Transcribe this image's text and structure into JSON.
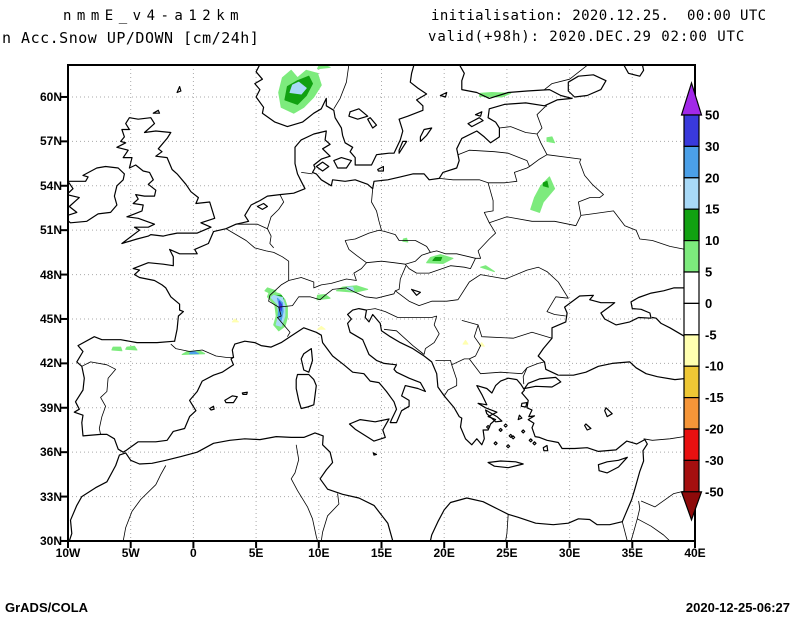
{
  "header": {
    "title_line1": "nmmE_v4-a12km",
    "title_line2": "n Acc.Snow UP/DOWN [cm/24h]",
    "init_line": "initialisation: 2020.12.25.  00:00 UTC",
    "valid_line": "valid(+98h): 2020.DEC.29 02:00 UTC"
  },
  "footer": {
    "left": "GrADS/COLA",
    "right": "2020-12-25-06:27"
  },
  "axes": {
    "lat_ticks": [
      "60N",
      "57N",
      "54N",
      "51N",
      "48N",
      "45N",
      "42N",
      "39N",
      "36N",
      "33N",
      "30N"
    ],
    "lon_ticks": [
      "10W",
      "5W",
      "0",
      "5E",
      "10E",
      "15E",
      "20E",
      "25E",
      "30E",
      "35E",
      "40E"
    ]
  },
  "colorbar": {
    "tick_labels": [
      "50",
      "30",
      "20",
      "15",
      "10",
      "5",
      "0",
      "-5",
      "-10",
      "-15",
      "-20",
      "-30",
      "-50"
    ],
    "segment_colors_top_to_bottom": [
      "#3939DC",
      "#4BA0E8",
      "#A8D9F7",
      "#11A111",
      "#7DEB7D",
      "#FFFFFF",
      "#FFFFFF",
      "#FFFFB0",
      "#EEC735",
      "#F59538",
      "#E81010",
      "#A50F0F"
    ],
    "top_arrow_color": "#A128E8",
    "bottom_arrow_color": "#8E0A0A",
    "palette": {
      "5": "#7DEB7D",
      "10": "#11A111",
      "15": "#A8D9F7",
      "20": "#4BA0E8",
      "30": "#3939DC",
      "50": "#A128E8",
      "-5": "#FFFFB0",
      "-10": "#EEC735",
      "-15": "#F59538",
      "-20": "#E81010",
      "-30": "#A50F0F"
    }
  },
  "chart_data": {
    "type": "filled-contour-map",
    "variable": "Acc.Snow UP/DOWN",
    "units": "cm/24h",
    "model": "nmmE_v4-a12km",
    "initialisation": "2020.12.25. 00:00 UTC",
    "valid": "2020.DEC.29 02:00 UTC (+98h)",
    "lon_range": [
      -10,
      40
    ],
    "lat_range": [
      30,
      62.2
    ],
    "contour_levels": [
      -50,
      -30,
      -20,
      -15,
      -10,
      -5,
      0,
      5,
      10,
      15,
      20,
      30,
      50
    ],
    "patches": [
      {
        "level": 5,
        "region": "southern-norway",
        "points": [
          [
            7.0,
            59.3
          ],
          [
            8.0,
            58.9
          ],
          [
            8.8,
            59.3
          ],
          [
            9.6,
            60.0
          ],
          [
            10.2,
            60.8
          ],
          [
            9.9,
            61.6
          ],
          [
            9.0,
            61.8
          ],
          [
            8.3,
            61.3
          ],
          [
            7.8,
            61.8
          ],
          [
            7.1,
            61.3
          ],
          [
            6.8,
            60.3
          ]
        ]
      },
      {
        "level": 10,
        "region": "southern-norway",
        "points": [
          [
            7.3,
            59.8
          ],
          [
            8.3,
            59.5
          ],
          [
            9.0,
            60.1
          ],
          [
            9.5,
            60.9
          ],
          [
            9.2,
            61.4
          ],
          [
            8.3,
            61.1
          ],
          [
            7.5,
            60.7
          ]
        ]
      },
      {
        "level": 15,
        "region": "southern-norway",
        "points": [
          [
            7.7,
            60.3
          ],
          [
            8.6,
            60.2
          ],
          [
            9.0,
            60.6
          ],
          [
            8.4,
            61.0
          ],
          [
            7.9,
            60.8
          ]
        ]
      },
      {
        "level": 5,
        "region": "norway-north-edge",
        "points": [
          [
            9.9,
            61.9
          ],
          [
            10.9,
            62.0
          ],
          [
            10.4,
            62.15
          ],
          [
            10.0,
            62.1
          ]
        ]
      },
      {
        "level": 5,
        "region": "southern-finland-coast",
        "points": [
          [
            22.8,
            60.05
          ],
          [
            24.6,
            60.0
          ],
          [
            25.3,
            60.25
          ],
          [
            23.8,
            60.3
          ],
          [
            22.9,
            60.25
          ]
        ]
      },
      {
        "level": 5,
        "region": "pskov-area",
        "points": [
          [
            28.2,
            57.0
          ],
          [
            28.8,
            56.9
          ],
          [
            28.6,
            57.3
          ],
          [
            28.2,
            57.25
          ]
        ]
      },
      {
        "level": 5,
        "region": "belarus-upland",
        "points": [
          [
            26.9,
            52.4
          ],
          [
            27.6,
            52.2
          ],
          [
            27.9,
            52.9
          ],
          [
            28.8,
            53.8
          ],
          [
            28.4,
            54.6
          ],
          [
            27.7,
            54.0
          ],
          [
            27.2,
            53.2
          ]
        ]
      },
      {
        "level": 10,
        "region": "belarus-upland",
        "points": [
          [
            27.9,
            54.0
          ],
          [
            28.3,
            53.9
          ],
          [
            28.2,
            54.3
          ],
          [
            27.9,
            54.2
          ]
        ]
      },
      {
        "level": 5,
        "region": "sudetes",
        "points": [
          [
            16.7,
            50.25
          ],
          [
            17.1,
            50.2
          ],
          [
            17.0,
            50.45
          ],
          [
            16.75,
            50.4
          ]
        ]
      },
      {
        "level": 5,
        "region": "tatras",
        "points": [
          [
            18.6,
            48.8
          ],
          [
            19.9,
            48.75
          ],
          [
            20.7,
            49.1
          ],
          [
            19.7,
            49.35
          ],
          [
            18.9,
            49.15
          ]
        ]
      },
      {
        "level": 10,
        "region": "tatras",
        "points": [
          [
            19.1,
            48.95
          ],
          [
            19.7,
            48.95
          ],
          [
            19.8,
            49.15
          ],
          [
            19.3,
            49.15
          ]
        ]
      },
      {
        "level": 5,
        "region": "ukrainian-carpathians",
        "points": [
          [
            22.9,
            48.5
          ],
          [
            24.0,
            48.2
          ],
          [
            23.3,
            48.6
          ]
        ]
      },
      {
        "level": 5,
        "region": "western-alps",
        "points": [
          [
            6.1,
            46.9
          ],
          [
            6.9,
            46.7
          ],
          [
            7.3,
            46.3
          ],
          [
            7.5,
            45.8
          ],
          [
            7.5,
            45.1
          ],
          [
            7.3,
            44.5
          ],
          [
            6.8,
            44.2
          ],
          [
            6.4,
            44.6
          ],
          [
            6.6,
            45.2
          ],
          [
            6.5,
            45.9
          ],
          [
            5.9,
            46.5
          ]
        ]
      },
      {
        "level": 10,
        "region": "western-alps-north",
        "points": [
          [
            6.5,
            46.55
          ],
          [
            7.0,
            46.6
          ],
          [
            7.2,
            46.35
          ],
          [
            6.85,
            46.3
          ]
        ]
      },
      {
        "level": 15,
        "region": "western-alps",
        "points": [
          [
            6.4,
            46.6
          ],
          [
            7.1,
            46.45
          ],
          [
            7.3,
            45.9
          ],
          [
            7.3,
            45.2
          ],
          [
            7.0,
            44.5
          ],
          [
            6.6,
            44.6
          ],
          [
            6.8,
            45.3
          ],
          [
            6.7,
            46.0
          ],
          [
            6.2,
            46.45
          ]
        ]
      },
      {
        "level": 20,
        "region": "western-alps",
        "points": [
          [
            6.7,
            46.4
          ],
          [
            7.1,
            46.1
          ],
          [
            7.15,
            45.5
          ],
          [
            7.0,
            44.9
          ],
          [
            6.75,
            45.2
          ],
          [
            6.85,
            45.9
          ]
        ]
      },
      {
        "level": 30,
        "region": "western-alps",
        "points": [
          [
            6.85,
            46.2
          ],
          [
            7.05,
            45.95
          ],
          [
            7.0,
            45.55
          ],
          [
            6.85,
            45.8
          ]
        ]
      },
      {
        "level": 5,
        "region": "jura",
        "points": [
          [
            5.9,
            47.1
          ],
          [
            6.6,
            46.9
          ],
          [
            6.2,
            46.7
          ],
          [
            5.7,
            46.9
          ]
        ]
      },
      {
        "level": 5,
        "region": "central-alps",
        "points": [
          [
            9.85,
            46.3
          ],
          [
            10.9,
            46.4
          ],
          [
            10.5,
            46.65
          ],
          [
            9.9,
            46.6
          ]
        ]
      },
      {
        "level": 5,
        "region": "eastern-alps",
        "points": [
          [
            11.4,
            46.9
          ],
          [
            12.9,
            46.8
          ],
          [
            13.9,
            47.0
          ],
          [
            13.0,
            47.25
          ],
          [
            11.9,
            47.15
          ]
        ]
      },
      {
        "level": 15,
        "region": "eastern-alps",
        "points": [
          [
            12.2,
            47.0
          ],
          [
            12.8,
            46.9
          ],
          [
            12.7,
            47.15
          ],
          [
            12.3,
            47.15
          ]
        ]
      },
      {
        "level": -5,
        "region": "apennines",
        "points": [
          [
            9.9,
            44.3
          ],
          [
            10.5,
            44.3
          ],
          [
            10.2,
            44.5
          ]
        ]
      },
      {
        "level": -5,
        "region": "southern-france",
        "points": [
          [
            3.1,
            44.8
          ],
          [
            3.6,
            44.8
          ],
          [
            3.3,
            45.0
          ]
        ]
      },
      {
        "level": -5,
        "region": "serbia",
        "points": [
          [
            21.5,
            43.3
          ],
          [
            21.9,
            43.3
          ],
          [
            21.7,
            43.55
          ]
        ]
      },
      {
        "level": -5,
        "region": "bulgaria",
        "points": [
          [
            22.8,
            43.2
          ],
          [
            23.2,
            43.15
          ],
          [
            23.0,
            43.4
          ]
        ]
      },
      {
        "level": 5,
        "region": "cantabria-west",
        "points": [
          [
            -6.5,
            42.9
          ],
          [
            -5.7,
            42.85
          ],
          [
            -5.8,
            43.1
          ],
          [
            -6.4,
            43.1
          ]
        ]
      },
      {
        "level": 5,
        "region": "cantabria-east",
        "points": [
          [
            -5.4,
            42.95
          ],
          [
            -4.5,
            42.9
          ],
          [
            -4.7,
            43.15
          ],
          [
            -5.3,
            43.1
          ]
        ]
      },
      {
        "level": 5,
        "region": "pyrenees",
        "points": [
          [
            -0.9,
            42.6
          ],
          [
            0.9,
            42.65
          ],
          [
            0.5,
            42.85
          ],
          [
            -0.5,
            42.8
          ]
        ]
      },
      {
        "level": 20,
        "region": "pyrenees",
        "points": [
          [
            -0.3,
            42.65
          ],
          [
            0.4,
            42.65
          ],
          [
            0.1,
            42.8
          ],
          [
            -0.2,
            42.78
          ]
        ]
      }
    ]
  }
}
